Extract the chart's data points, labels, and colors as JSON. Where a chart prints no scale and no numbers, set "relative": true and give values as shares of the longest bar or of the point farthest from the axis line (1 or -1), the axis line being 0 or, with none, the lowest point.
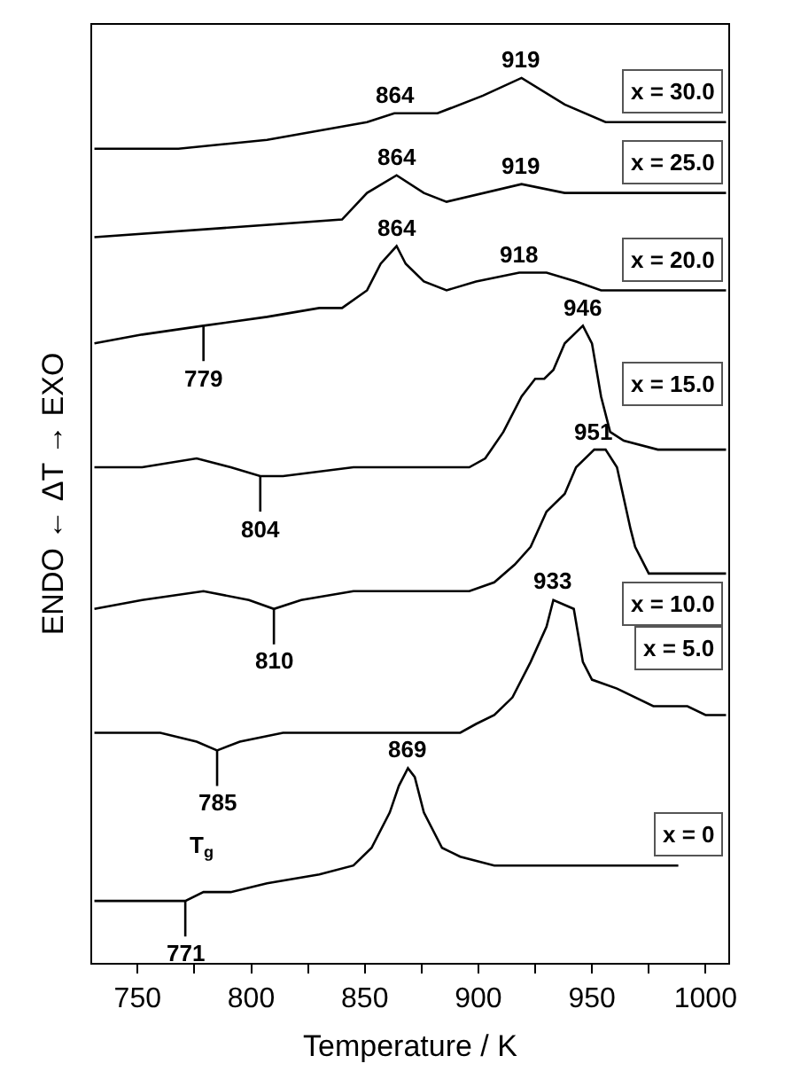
{
  "chart_data": {
    "type": "line",
    "relative": true,
    "xlabel": "Temperature / K",
    "ylabel": "ENDO ← ΔT → EXO",
    "xlim": [
      730,
      1010
    ],
    "xticks": [
      750,
      {
        "value": 775,
        "label": null
      },
      800,
      {
        "value": 825,
        "label": null
      },
      850,
      {
        "value": 875,
        "label": null
      },
      900,
      {
        "value": 925,
        "label": null
      },
      950,
      {
        "value": 975,
        "label": null
      },
      1000
    ],
    "series": [
      {
        "name": "x = 30.0",
        "color": "#000000",
        "x": [
          731,
          768,
          807,
          851,
          863,
          882,
          902,
          919,
          938,
          956,
          1009
        ],
        "values": [
          0.92,
          0.92,
          0.93,
          0.95,
          0.96,
          0.96,
          0.98,
          1.0,
          0.97,
          0.95,
          0.95
        ]
      },
      {
        "name": "x = 25.0",
        "color": "#000000",
        "x": [
          731,
          840,
          851,
          864,
          876,
          886,
          919,
          938,
          956,
          1009
        ],
        "values": [
          0.82,
          0.84,
          0.87,
          0.89,
          0.87,
          0.86,
          0.88,
          0.87,
          0.87,
          0.87
        ]
      },
      {
        "name": "x = 20.0",
        "color": "#000000",
        "x": [
          731,
          752,
          779,
          807,
          830,
          840,
          851,
          857,
          864,
          868,
          876,
          886,
          899,
          918,
          930,
          943,
          954,
          1009
        ],
        "values": [
          0.7,
          0.71,
          0.72,
          0.73,
          0.74,
          0.74,
          0.76,
          0.79,
          0.81,
          0.79,
          0.77,
          0.76,
          0.77,
          0.78,
          0.78,
          0.77,
          0.76,
          0.76
        ]
      },
      {
        "name": "x = 15.0",
        "color": "#000000",
        "x": [
          731,
          752,
          776,
          791,
          804,
          814,
          845,
          876,
          896,
          903,
          911,
          919,
          925,
          929,
          933,
          938,
          946,
          950,
          954,
          958,
          964,
          979,
          1009
        ],
        "values": [
          0.56,
          0.56,
          0.57,
          0.56,
          0.55,
          0.55,
          0.56,
          0.56,
          0.56,
          0.57,
          0.6,
          0.64,
          0.66,
          0.66,
          0.67,
          0.7,
          0.72,
          0.7,
          0.64,
          0.6,
          0.59,
          0.58,
          0.58
        ]
      },
      {
        "name": "x = 10.0",
        "color": "#000000",
        "x": [
          731,
          752,
          779,
          799,
          810,
          822,
          845,
          876,
          896,
          907,
          916,
          923,
          930,
          938,
          943,
          951,
          956,
          961,
          967,
          969,
          975,
          985,
          1009
        ],
        "values": [
          0.4,
          0.41,
          0.42,
          0.41,
          0.4,
          0.41,
          0.42,
          0.42,
          0.42,
          0.43,
          0.45,
          0.47,
          0.51,
          0.53,
          0.56,
          0.58,
          0.58,
          0.56,
          0.49,
          0.47,
          0.44,
          0.44,
          0.44
        ]
      },
      {
        "name": "x = 5.0",
        "color": "#000000",
        "x": [
          731,
          760,
          776,
          785,
          795,
          814,
          845,
          892,
          899,
          907,
          915,
          923,
          930,
          933,
          942,
          946,
          950,
          961,
          977,
          992,
          1000,
          1009
        ],
        "values": [
          0.26,
          0.26,
          0.25,
          0.24,
          0.25,
          0.26,
          0.26,
          0.26,
          0.27,
          0.28,
          0.3,
          0.34,
          0.38,
          0.41,
          0.4,
          0.34,
          0.32,
          0.31,
          0.29,
          0.29,
          0.28,
          0.28
        ]
      },
      {
        "name": "x = 0",
        "color": "#000000",
        "x": [
          731,
          752,
          768,
          771,
          779,
          791,
          807,
          830,
          845,
          853,
          861,
          865,
          869,
          872,
          876,
          884,
          892,
          907,
          923,
          988
        ],
        "values": [
          0.07,
          0.07,
          0.07,
          0.07,
          0.08,
          0.08,
          0.09,
          0.1,
          0.11,
          0.13,
          0.17,
          0.2,
          0.22,
          0.21,
          0.17,
          0.13,
          0.12,
          0.11,
          0.11,
          0.11
        ]
      }
    ],
    "annotations": [
      {
        "text": "864",
        "x": 863,
        "y": 0.96
      },
      {
        "text": "919",
        "x": 919,
        "y": 1.0
      },
      {
        "text": "864",
        "x": 864,
        "y": 0.89
      },
      {
        "text": "919",
        "x": 919,
        "y": 0.88
      },
      {
        "text": "864",
        "x": 864,
        "y": 0.81
      },
      {
        "text": "918",
        "x": 918,
        "y": 0.78
      },
      {
        "text": "779",
        "x": 779,
        "y": 0.72
      },
      {
        "text": "946",
        "x": 946,
        "y": 0.72
      },
      {
        "text": "804",
        "x": 804,
        "y": 0.55
      },
      {
        "text": "951",
        "x": 951,
        "y": 0.58
      },
      {
        "text": "810",
        "x": 810,
        "y": 0.4
      },
      {
        "text": "933",
        "x": 933,
        "y": 0.41
      },
      {
        "text": "785",
        "x": 785,
        "y": 0.24
      },
      {
        "text": "869",
        "x": 869,
        "y": 0.22
      },
      {
        "text": "771",
        "x": 771,
        "y": 0.07
      },
      "T$_{g}$"
    ]
  }
}
